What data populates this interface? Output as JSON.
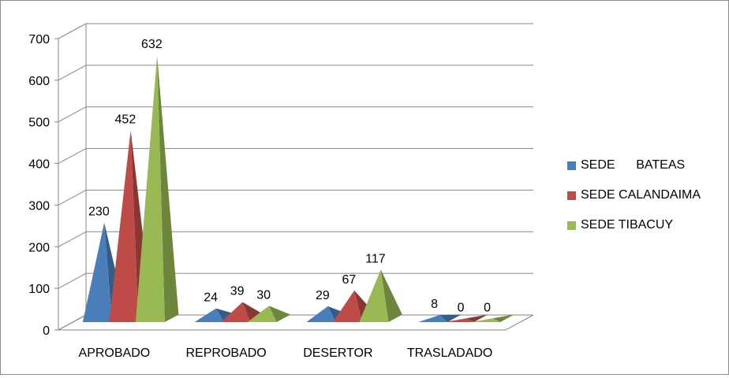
{
  "chart_data": {
    "type": "bar",
    "bar_shape": "3d-pyramid",
    "title": "",
    "xlabel": "",
    "ylabel": "",
    "categories": [
      "APROBADO",
      "REPROBADO",
      "DESERTOR",
      "TRASLADADO"
    ],
    "series": [
      {
        "name": "SEDE      BATEAS",
        "color": "#4a7ebb",
        "values": [
          230,
          24,
          29,
          8
        ]
      },
      {
        "name": "SEDE CALANDAIMA",
        "color": "#be4b48",
        "values": [
          452,
          39,
          67,
          0
        ]
      },
      {
        "name": "SEDE TIBACUY",
        "color": "#98b954",
        "values": [
          632,
          30,
          117,
          0
        ]
      }
    ],
    "ylim": [
      0,
      700
    ],
    "yticks": [
      0,
      100,
      200,
      300,
      400,
      500,
      600,
      700
    ],
    "grid": true,
    "data_labels": true,
    "legend_position": "right"
  }
}
